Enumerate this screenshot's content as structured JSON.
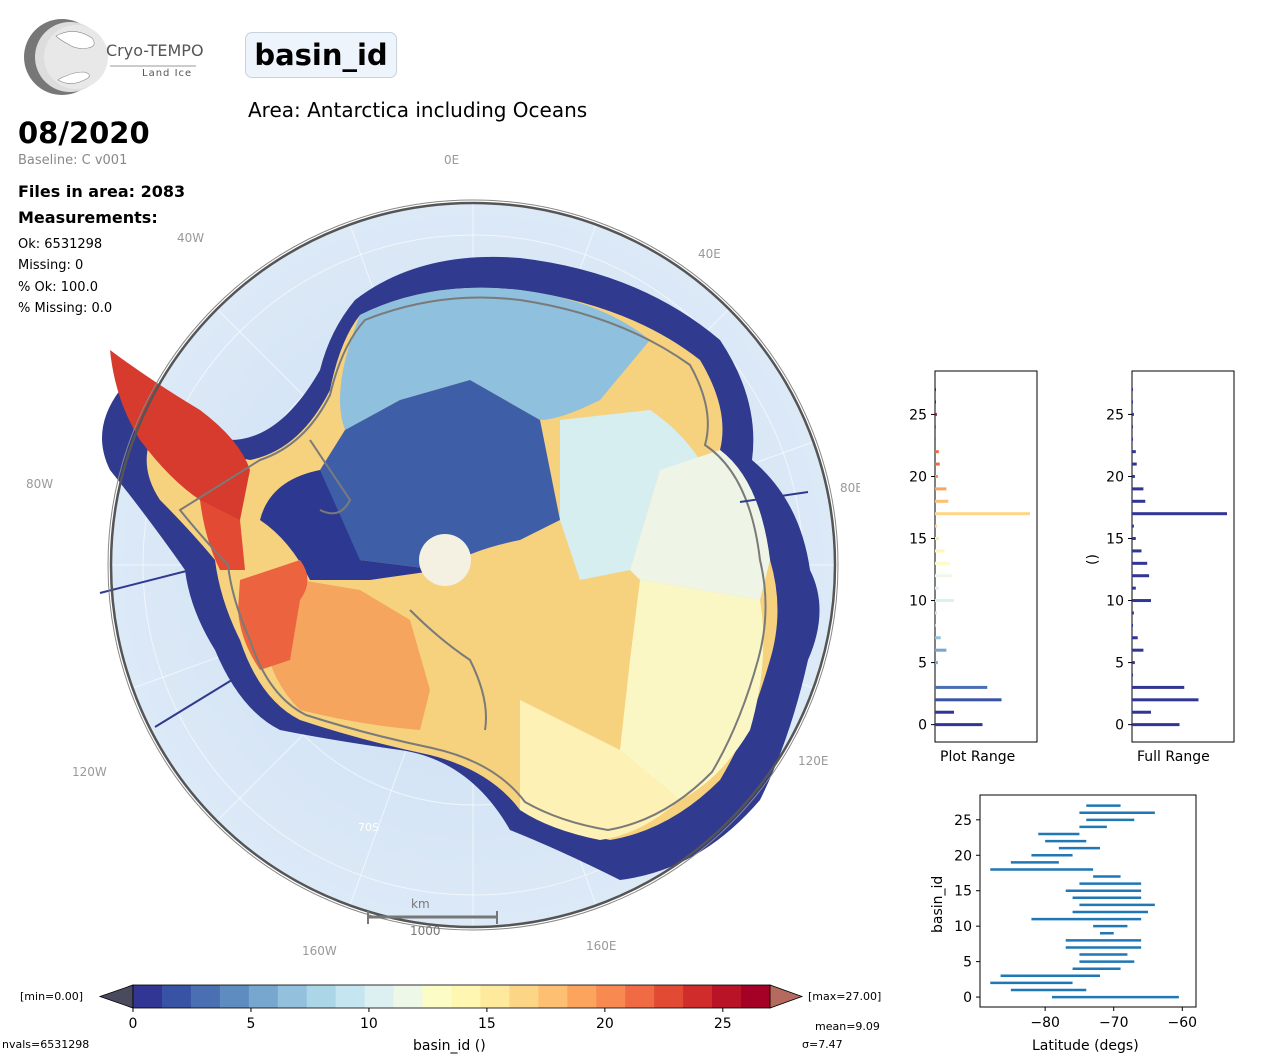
{
  "logo": {
    "name": "Cryo-TEMPO",
    "subtitle": "Land Ice"
  },
  "header": {
    "title": "basin_id",
    "area": "Area: Antarctica including Oceans"
  },
  "info": {
    "date": "08/2020",
    "baseline": "Baseline: C v001",
    "files": "Files in area: 2083",
    "measurements_label": "Measurements:",
    "ok": "Ok: 6531298",
    "missing": "Missing: 0",
    "pct_ok": "% Ok: 100.0",
    "pct_missing": "% Missing: 0.0"
  },
  "map": {
    "meridian_labels": [
      "0E",
      "40E",
      "80E",
      "120E",
      "160E",
      "160W",
      "120W",
      "80W",
      "40W"
    ],
    "lat_label": "70S",
    "scalebar": {
      "unit": "km",
      "value": "1000"
    }
  },
  "colorbar": {
    "min_label": "[min=0.00]",
    "max_label": "[max=27.00]",
    "ticks": [
      "0",
      "5",
      "10",
      "15",
      "20",
      "25"
    ],
    "label": "basin_id ()",
    "nvals": "nvals=6531298",
    "mean": "mean=9.09",
    "sigma": "σ=7.47",
    "colors": [
      "#313695",
      "#3953a4",
      "#4a6fb2",
      "#5e8cc0",
      "#77a6ce",
      "#92c0dd",
      "#abd6e8",
      "#c5e6f0",
      "#dcf0f2",
      "#eef8e8",
      "#fcfdc6",
      "#fff6b2",
      "#fee99d",
      "#fdd587",
      "#fdbf71",
      "#fca35e",
      "#f88950",
      "#f06a43",
      "#e24a33",
      "#cf2c2b",
      "#b81327",
      "#a50026"
    ]
  },
  "chart_data": [
    {
      "type": "bar",
      "orientation": "horizontal",
      "xlabel": "Plot Range",
      "ylabel": "",
      "ylim": [
        -1.4,
        28.5
      ],
      "yticks": [
        "0",
        "5",
        "10",
        "15",
        "20",
        "25"
      ],
      "categories": [
        0,
        1,
        2,
        3,
        4,
        5,
        6,
        7,
        8,
        9,
        10,
        11,
        12,
        13,
        14,
        15,
        16,
        17,
        18,
        19,
        20,
        21,
        22,
        23,
        24,
        25,
        26,
        27
      ],
      "values": [
        0.5,
        0.2,
        0.7,
        0.55,
        0.01,
        0.03,
        0.12,
        0.06,
        0.01,
        0.02,
        0.2,
        0.04,
        0.18,
        0.16,
        0.1,
        0.04,
        0.02,
        1.0,
        0.14,
        0.12,
        0.03,
        0.05,
        0.04,
        0.01,
        0.01,
        0.02,
        0.01,
        0.01
      ]
    },
    {
      "type": "bar",
      "orientation": "horizontal",
      "xlabel": "Full Range",
      "ylabel": "()",
      "ylim": [
        -1.4,
        28.5
      ],
      "yticks": [
        "0",
        "5",
        "10",
        "15",
        "20",
        "25"
      ],
      "categories": [
        0,
        1,
        2,
        3,
        4,
        5,
        6,
        7,
        8,
        9,
        10,
        11,
        12,
        13,
        14,
        15,
        16,
        17,
        18,
        19,
        20,
        21,
        22,
        23,
        24,
        25,
        26,
        27
      ],
      "values": [
        0.5,
        0.2,
        0.7,
        0.55,
        0.01,
        0.03,
        0.12,
        0.06,
        0.01,
        0.02,
        0.2,
        0.04,
        0.18,
        0.16,
        0.1,
        0.04,
        0.02,
        1.0,
        0.14,
        0.12,
        0.03,
        0.05,
        0.04,
        0.01,
        0.01,
        0.02,
        0.01,
        0.01
      ]
    },
    {
      "type": "range",
      "orientation": "horizontal",
      "xlabel": "Latitude (degs)",
      "ylabel": "basin_id",
      "xlim": [
        -89.5,
        -58
      ],
      "ylim": [
        -1.4,
        28.5
      ],
      "xticks": [
        "−80",
        "−70",
        "−60"
      ],
      "yticks": [
        "0",
        "5",
        "10",
        "15",
        "20",
        "25"
      ],
      "categories": [
        0,
        1,
        2,
        3,
        4,
        5,
        6,
        7,
        8,
        9,
        10,
        11,
        12,
        13,
        14,
        15,
        16,
        17,
        18,
        19,
        20,
        21,
        22,
        23,
        24,
        25,
        26,
        27
      ],
      "ranges": [
        [
          -79,
          -60.5
        ],
        [
          -85,
          -74
        ],
        [
          -88,
          -76
        ],
        [
          -86.5,
          -72
        ],
        [
          -76,
          -69
        ],
        [
          -75,
          -67
        ],
        [
          -75,
          -68
        ],
        [
          -77,
          -66
        ],
        [
          -77,
          -66
        ],
        [
          -72,
          -70
        ],
        [
          -73,
          -68
        ],
        [
          -82,
          -66
        ],
        [
          -76,
          -65
        ],
        [
          -75,
          -64
        ],
        [
          -76,
          -66
        ],
        [
          -77,
          -66
        ],
        [
          -75,
          -66
        ],
        [
          -73,
          -69
        ],
        [
          -88,
          -73
        ],
        [
          -85,
          -78
        ],
        [
          -82,
          -76
        ],
        [
          -78,
          -72
        ],
        [
          -80,
          -74
        ],
        [
          -81,
          -75
        ],
        [
          -75,
          -71
        ],
        [
          -74,
          -67
        ],
        [
          -75,
          -64
        ],
        [
          -74,
          -69
        ]
      ]
    }
  ]
}
